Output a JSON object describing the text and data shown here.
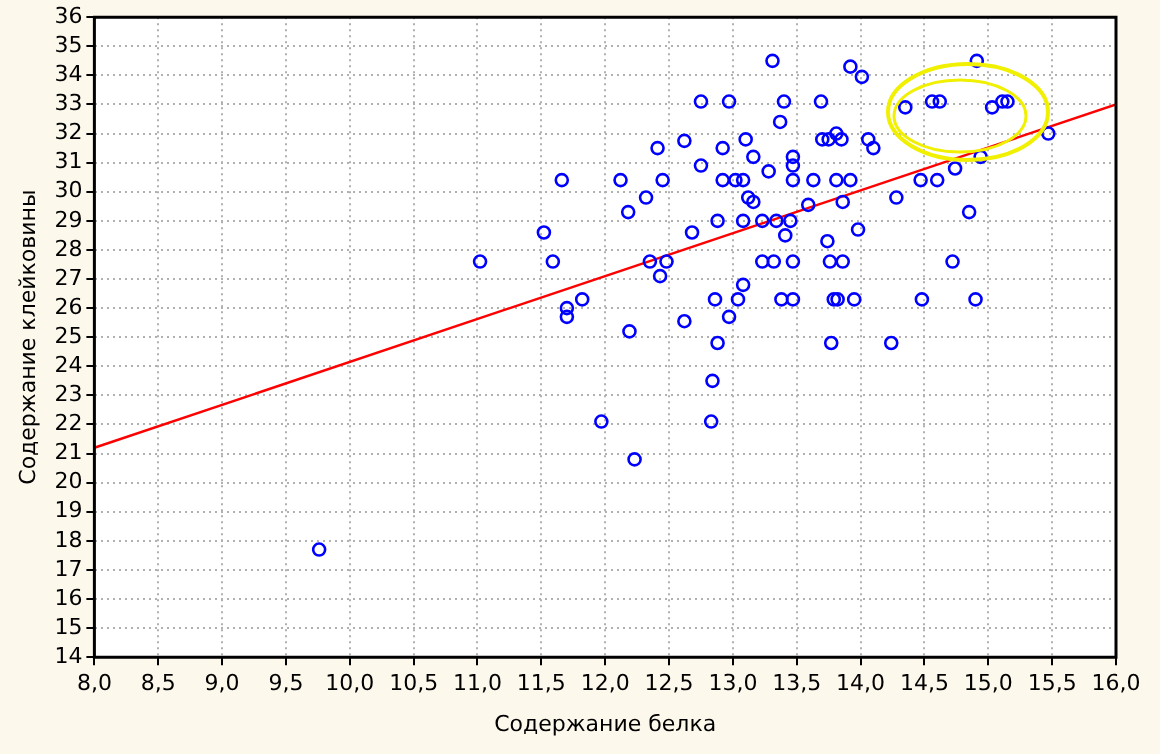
{
  "chart_data": {
    "type": "scatter",
    "xlabel": "Содержание белка",
    "ylabel": "Содержание клейковины",
    "xlim": [
      8,
      16
    ],
    "ylim": [
      14,
      36
    ],
    "xticks": [
      {
        "value": 8,
        "label": "8,0"
      },
      {
        "value": 8.5,
        "label": "8,5"
      },
      {
        "value": 9,
        "label": "9,0"
      },
      {
        "value": 9.5,
        "label": "9,5"
      },
      {
        "value": 10,
        "label": "10,0"
      },
      {
        "value": 10.5,
        "label": "10,5"
      },
      {
        "value": 11,
        "label": "11,0"
      },
      {
        "value": 11.5,
        "label": "11,5"
      },
      {
        "value": 12,
        "label": "12,0"
      },
      {
        "value": 12.5,
        "label": "12,5"
      },
      {
        "value": 13,
        "label": "13,0"
      },
      {
        "value": 13.5,
        "label": "13,5"
      },
      {
        "value": 14,
        "label": "14,0"
      },
      {
        "value": 14.5,
        "label": "14,5"
      },
      {
        "value": 15,
        "label": "15,0"
      },
      {
        "value": 15.5,
        "label": "15,5"
      },
      {
        "value": 16,
        "label": "16,0"
      }
    ],
    "yticks": [
      14,
      15,
      16,
      17,
      18,
      19,
      20,
      21,
      22,
      23,
      24,
      25,
      26,
      27,
      28,
      29,
      30,
      31,
      32,
      33,
      34,
      35,
      36
    ],
    "grid": true,
    "legend": false,
    "series": [
      {
        "type": "scatter",
        "color": "#0000ff",
        "marker": "circle",
        "x": [
          9.76,
          11.02,
          11.52,
          11.59,
          11.66,
          11.7,
          11.7,
          11.82,
          11.97,
          12.12,
          12.18,
          12.19,
          12.23,
          12.32,
          12.35,
          12.48,
          12.43,
          12.41,
          12.45,
          12.62,
          12.62,
          12.68,
          12.75,
          12.75,
          12.83,
          12.84,
          12.88,
          12.86,
          13.04,
          12.88,
          12.92,
          12.92,
          13.02,
          13.08,
          12.97,
          12.97,
          13.08,
          13.08,
          13.1,
          13.12,
          13.16,
          13.16,
          13.23,
          13.34,
          13.45,
          13.23,
          13.32,
          13.47,
          13.28,
          13.31,
          13.37,
          13.38,
          13.47,
          13.4,
          13.41,
          13.47,
          13.47,
          13.47,
          13.59,
          13.63,
          13.69,
          13.7,
          13.75,
          13.81,
          13.85,
          13.74,
          13.76,
          13.86,
          13.77,
          13.79,
          13.82,
          13.95,
          13.81,
          13.92,
          13.86,
          13.92,
          14.01,
          13.98,
          14.06,
          14.1,
          14.24,
          14.28,
          14.35,
          14.47,
          14.6,
          14.48,
          14.56,
          14.62,
          14.72,
          14.74,
          14.85,
          14.9,
          14.91,
          14.94,
          15.03,
          15.11,
          15.15,
          15.47
        ],
        "values": [
          17.7,
          27.6,
          28.6,
          27.6,
          30.4,
          26.0,
          25.7,
          26.3,
          22.1,
          30.4,
          29.3,
          25.2,
          20.8,
          29.8,
          27.6,
          27.6,
          27.1,
          31.5,
          30.4,
          31.75,
          25.55,
          28.6,
          33.1,
          30.9,
          22.1,
          23.5,
          24.8,
          26.3,
          26.3,
          29.0,
          31.5,
          30.4,
          30.4,
          30.4,
          33.1,
          25.7,
          29.0,
          26.8,
          31.8,
          29.8,
          29.65,
          31.2,
          29.0,
          29.0,
          29.0,
          27.6,
          27.6,
          27.6,
          30.7,
          34.5,
          32.4,
          26.3,
          26.3,
          33.1,
          28.5,
          31.2,
          30.9,
          30.4,
          29.55,
          30.4,
          33.1,
          31.8,
          31.8,
          32.0,
          31.8,
          28.3,
          27.6,
          27.6,
          24.8,
          26.3,
          26.3,
          26.3,
          30.4,
          30.4,
          29.65,
          34.3,
          33.95,
          28.7,
          31.8,
          31.5,
          24.8,
          29.8,
          32.9,
          30.4,
          30.4,
          26.3,
          33.1,
          33.1,
          27.6,
          30.8,
          29.3,
          26.3,
          34.5,
          31.2,
          32.9,
          33.1,
          33.1,
          32.0
        ]
      },
      {
        "type": "line",
        "color": "#ff0000",
        "marker": "none",
        "line_style": "solid",
        "x": [
          8,
          16
        ],
        "values": [
          21.2,
          33.0
        ]
      }
    ]
  }
}
